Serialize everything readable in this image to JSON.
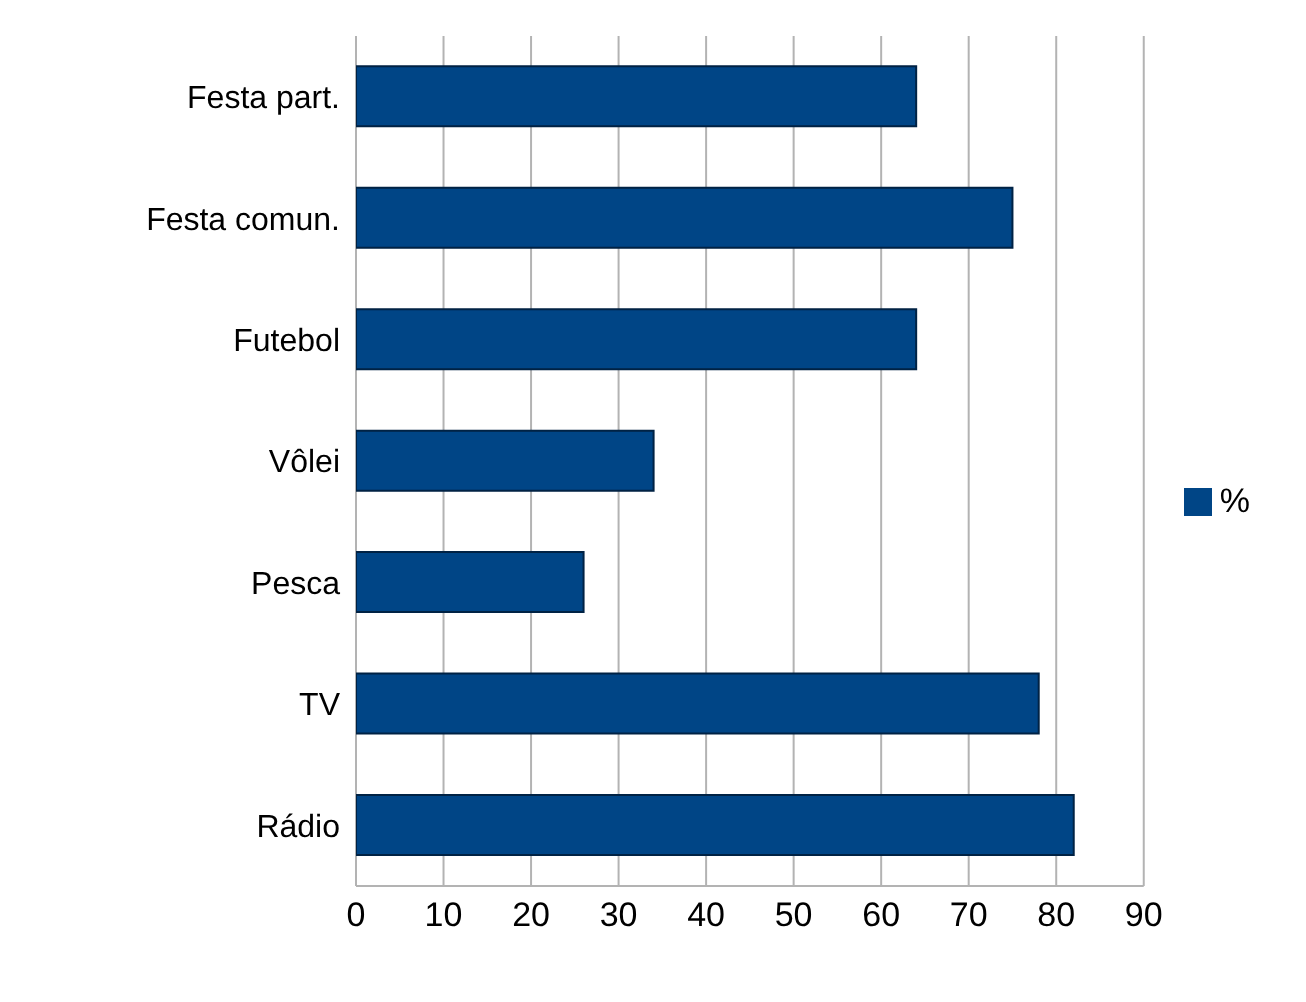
{
  "chart_data": {
    "type": "bar",
    "orientation": "horizontal",
    "categories": [
      "Festa part.",
      "Festa comun.",
      "Futebol",
      "Vôlei",
      "Pesca",
      "TV",
      "Rádio"
    ],
    "series": [
      {
        "name": "%",
        "color": "#004586",
        "values": [
          64,
          75,
          64,
          34,
          26,
          78,
          82
        ]
      }
    ],
    "xlim": [
      0,
      90
    ],
    "xticks": [
      0,
      10,
      20,
      30,
      40,
      50,
      60,
      70,
      80,
      90
    ],
    "grid": "x",
    "legend": "right"
  }
}
